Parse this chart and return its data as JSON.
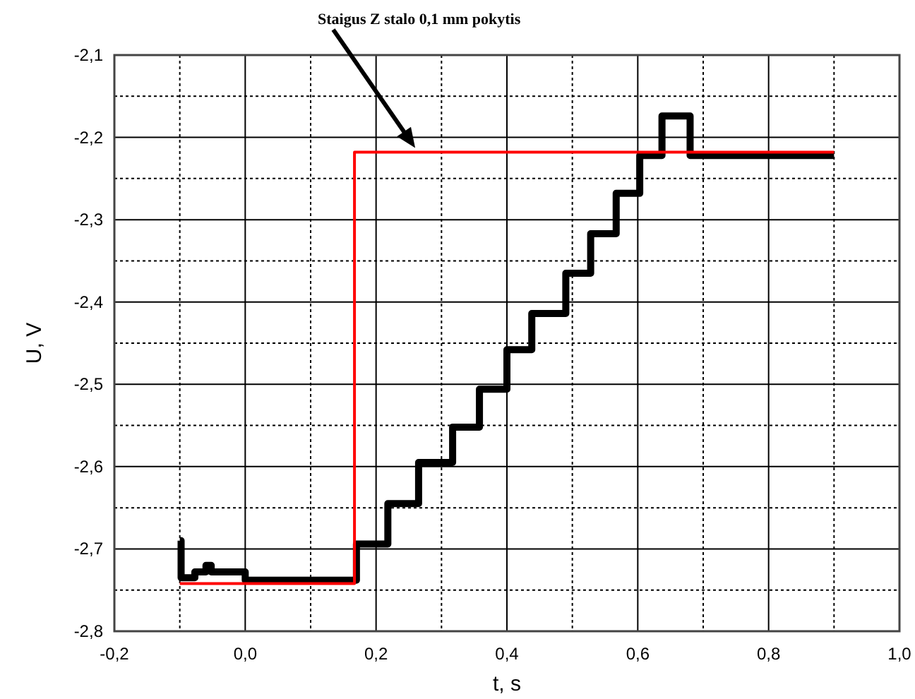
{
  "chart_data": {
    "type": "step",
    "xlabel": "t, s",
    "ylabel": "U, V",
    "annotations": [
      "Staigus Z stalo 0,1 mm pokytis"
    ],
    "series": [
      {
        "color": "#000000",
        "x": [
          -0.1,
          -0.098,
          -0.077,
          -0.06,
          -0.052,
          0.0,
          0.17,
          0.218,
          0.265,
          0.317,
          0.358,
          0.4,
          0.438,
          0.49,
          0.528,
          0.567,
          0.603,
          0.637,
          0.68,
          0.9
        ],
        "values": [
          -2.69,
          -2.735,
          -2.728,
          -2.72,
          -2.728,
          -2.738,
          -2.694,
          -2.645,
          -2.595,
          -2.552,
          -2.506,
          -2.458,
          -2.414,
          -2.365,
          -2.317,
          -2.268,
          -2.222,
          -2.174,
          -2.222,
          -2.222
        ]
      },
      {
        "color": "#ff0000",
        "x": [
          -0.1,
          0.167,
          0.9
        ],
        "values": [
          -2.742,
          -2.218,
          -2.218
        ]
      }
    ],
    "xlim": [
      -0.2,
      1.0
    ],
    "xticks": [
      {
        "value": -0.2,
        "label": "-0,2"
      },
      {
        "value": -0.1,
        "label": null
      },
      {
        "value": 0,
        "label": "0,0"
      },
      {
        "value": 0.1,
        "label": null
      },
      {
        "value": 0.2,
        "label": "0,2"
      },
      {
        "value": 0.3,
        "label": null
      },
      {
        "value": 0.4,
        "label": "0,4"
      },
      {
        "value": 0.5,
        "label": null
      },
      {
        "value": 0.6,
        "label": "0,6"
      },
      {
        "value": 0.7,
        "label": null
      },
      {
        "value": 0.8,
        "label": "0,8"
      },
      {
        "value": 0.9,
        "label": null
      },
      {
        "value": 1.0,
        "label": "1,0"
      }
    ],
    "ylim": [
      -2.8,
      -2.1
    ],
    "yticks": [
      {
        "value": -2.8,
        "label": "-2,8"
      },
      {
        "value": -2.75,
        "label": null
      },
      {
        "value": -2.7,
        "label": "-2,7"
      },
      {
        "value": -2.65,
        "label": null
      },
      {
        "value": -2.6,
        "label": "-2,6"
      },
      {
        "value": -2.55,
        "label": null
      },
      {
        "value": -2.5,
        "label": "-2,5"
      },
      {
        "value": -2.45,
        "label": null
      },
      {
        "value": -2.4,
        "label": "-2,4"
      },
      {
        "value": -2.35,
        "label": null
      },
      {
        "value": -2.3,
        "label": "-2,3"
      },
      {
        "value": -2.25,
        "label": null
      },
      {
        "value": -2.2,
        "label": "-2,2"
      },
      {
        "value": -2.15,
        "label": null
      },
      {
        "value": -2.1,
        "label": "-2,1"
      }
    ],
    "grid": true
  }
}
